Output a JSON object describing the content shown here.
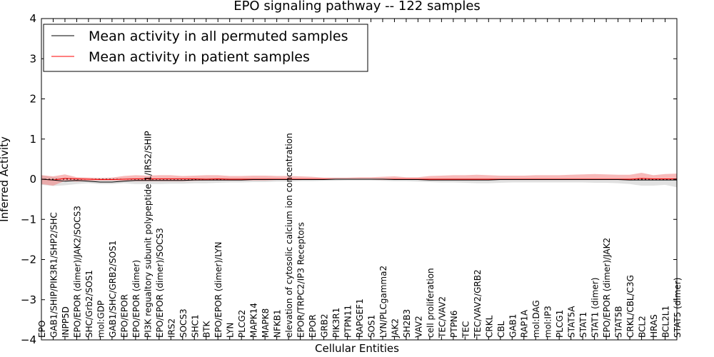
{
  "chart_data": {
    "type": "line",
    "title": "EPO signaling pathway -- 122 samples",
    "xlabel": "Cellular Entities",
    "ylabel": "Inferred Activity",
    "ylim": [
      -4,
      4
    ],
    "yticks": [
      -4,
      -3,
      -2,
      -1,
      0,
      1,
      2,
      3,
      4
    ],
    "legend_position": "top-left",
    "categories": [
      "EPO",
      "GAB1/SHIP/PIK3R1/SHP2/SHC",
      "INPP5D",
      "EPO/EPOR (dimer)/JAK2/SOCS3",
      "SHC/Grb2/SOS1",
      "mol:GDP",
      "GAB1/SHC/GRB2/SOS1",
      "EPO/EPOR",
      "EPO/EPOR (dimer)",
      "PI3K regualtory subunit polypeptide 1/IRS2/SHIP",
      "EPO/EPOR (dimer)/SOCS3",
      "IRS2",
      "SOCS3",
      "SHC1",
      "BTK",
      "EPO/EPOR (dimer)/LYN",
      "LYN",
      "PLCG2",
      "MAPK14",
      "MAPK8",
      "NFKB1",
      "elevation of cytosolic calcium ion concentration",
      "EPOR/TRPC2/IP3 Receptors",
      "EPOR",
      "GRB2",
      "PIK3R1",
      "PTPN11",
      "RAPGEF1",
      "SOS1",
      "LYN/PLCgamma2",
      "JAK2",
      "SH2B3",
      "VAV2",
      "cell proliferation",
      "TEC/VAV2",
      "PTPN6",
      "TEC",
      "TEC/VAV2/GRB2",
      "CRKL",
      "CBL",
      "GAB1",
      "RAP1A",
      "mol:DAG",
      "mol:IP3",
      "PLCG1",
      "STAT5A",
      "STAT1",
      "STAT1 (dimer)",
      "EPO/EPOR (dimer)/JAK2",
      "STAT5B",
      "CRKL/CBL/C3G",
      "BCL2",
      "HRAS",
      "BCL2L1",
      "STAT5 (dimer)"
    ],
    "series": [
      {
        "name": "Mean activity in all permuted samples",
        "color": "#000000",
        "band_color": "#c8c8c8",
        "values": [
          0,
          -0.02,
          -0.05,
          -0.03,
          -0.05,
          -0.07,
          -0.07,
          -0.05,
          -0.03,
          -0.03,
          -0.03,
          -0.03,
          -0.03,
          -0.02,
          -0.02,
          -0.02,
          -0.02,
          -0.02,
          -0.01,
          -0.01,
          -0.01,
          -0.01,
          -0.01,
          -0.01,
          -0.01,
          0,
          0,
          0,
          0,
          0,
          -0.01,
          -0.01,
          -0.01,
          -0.02,
          -0.02,
          -0.02,
          -0.02,
          -0.02,
          -0.02,
          -0.01,
          -0.01,
          -0.01,
          -0.01,
          -0.01,
          -0.01,
          -0.01,
          -0.01,
          -0.01,
          -0.01,
          -0.01,
          -0.02,
          -0.02,
          -0.02,
          -0.02,
          -0.02
        ],
        "lower": [
          -0.14,
          -0.17,
          -0.15,
          -0.12,
          -0.1,
          -0.12,
          -0.12,
          -0.1,
          -0.12,
          -0.12,
          -0.12,
          -0.11,
          -0.11,
          -0.1,
          -0.1,
          -0.09,
          -0.08,
          -0.08,
          -0.07,
          -0.07,
          -0.06,
          -0.06,
          -0.05,
          -0.05,
          -0.04,
          -0.04,
          -0.03,
          -0.03,
          -0.03,
          -0.04,
          -0.05,
          -0.05,
          -0.06,
          -0.07,
          -0.08,
          -0.08,
          -0.09,
          -0.1,
          -0.1,
          -0.09,
          -0.08,
          -0.08,
          -0.08,
          -0.08,
          -0.08,
          -0.08,
          -0.08,
          -0.09,
          -0.09,
          -0.1,
          -0.12,
          -0.16,
          -0.16,
          -0.14,
          -0.2
        ],
        "upper": [
          0.1,
          0.05,
          0.03,
          0.03,
          0.02,
          0.02,
          0.02,
          0.03,
          0.03,
          0.03,
          0.03,
          0.03,
          0.03,
          0.03,
          0.03,
          0.03,
          0.03,
          0.03,
          0.03,
          0.03,
          0.03,
          0.02,
          0.02,
          0.02,
          0.02,
          0.02,
          0.02,
          0.02,
          0.02,
          0.02,
          0.02,
          0.02,
          0.02,
          0.02,
          0.02,
          0.02,
          0.02,
          0.02,
          0.02,
          0.02,
          0.02,
          0.02,
          0.02,
          0.02,
          0.02,
          0.02,
          0.02,
          0.02,
          0.02,
          0.02,
          0.02,
          0.02,
          0.02,
          0.02,
          0.02
        ]
      },
      {
        "name": "Mean activity in patient samples",
        "color": "#ff0000",
        "band_color": "#f28080",
        "values": [
          0,
          -0.02,
          0.02,
          0.01,
          0,
          -0.01,
          -0.01,
          0,
          0.01,
          0.01,
          0.01,
          0.01,
          0.01,
          0.01,
          0,
          0.01,
          0,
          0,
          0,
          0,
          0,
          0,
          0,
          0,
          0,
          0,
          0,
          0,
          0,
          0,
          0,
          0,
          0,
          0,
          0,
          0,
          0,
          0,
          0,
          0,
          0,
          0,
          0,
          0,
          0,
          0,
          0,
          0,
          0,
          0,
          0,
          0.02,
          0.01,
          0.01,
          0.01
        ],
        "lower": [
          -0.12,
          -0.16,
          -0.04,
          -0.06,
          -0.04,
          -0.03,
          -0.03,
          -0.04,
          -0.05,
          -0.05,
          -0.05,
          -0.05,
          -0.05,
          -0.04,
          -0.03,
          -0.03,
          -0.03,
          -0.03,
          -0.03,
          -0.03,
          -0.02,
          -0.02,
          -0.02,
          -0.01,
          -0.01,
          -0.01,
          -0.01,
          -0.01,
          -0.01,
          -0.02,
          -0.01,
          -0.01,
          -0.02,
          -0.02,
          -0.02,
          -0.02,
          -0.02,
          -0.02,
          -0.02,
          -0.02,
          -0.02,
          -0.02,
          -0.02,
          -0.02,
          -0.02,
          -0.02,
          -0.02,
          -0.02,
          -0.02,
          -0.02,
          -0.02,
          -0.02,
          -0.02,
          -0.02,
          -0.02
        ],
        "upper": [
          0.1,
          0.07,
          0.12,
          0.05,
          0.04,
          0.03,
          0.04,
          0.08,
          0.1,
          0.09,
          0.1,
          0.1,
          0.08,
          0.09,
          0.1,
          0.1,
          0.08,
          0.08,
          0.09,
          0.09,
          0.08,
          0.08,
          0.07,
          0.06,
          0.04,
          0.04,
          0.04,
          0.05,
          0.05,
          0.06,
          0.07,
          0.05,
          0.05,
          0.08,
          0.09,
          0.1,
          0.1,
          0.11,
          0.1,
          0.09,
          0.09,
          0.09,
          0.1,
          0.1,
          0.1,
          0.11,
          0.12,
          0.13,
          0.12,
          0.11,
          0.11,
          0.16,
          0.1,
          0.13,
          0.14
        ]
      }
    ]
  }
}
